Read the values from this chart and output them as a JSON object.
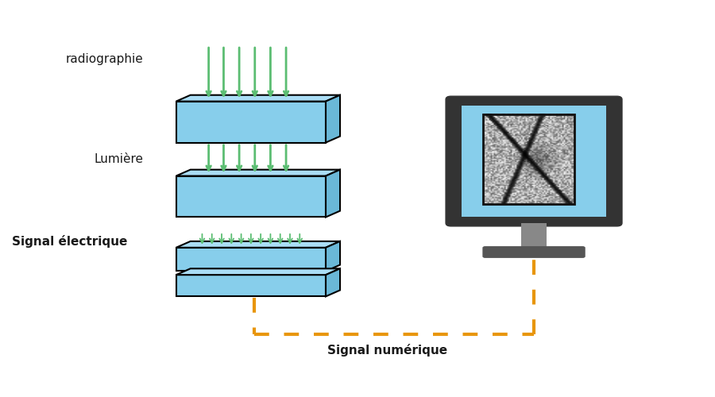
{
  "bg_color": "#ffffff",
  "layer_color": "#87CEEB",
  "layer_edge_color": "#000000",
  "arrow_color": "#5BBD72",
  "dashed_line_color": "#E8960C",
  "text_color": "#1a1a1a",
  "monitor_body_color": "#333333",
  "monitor_screen_color": "#87CEEB",
  "monitor_stand_color": "#888888",
  "monitor_base_color": "#555555",
  "label_radiographie": "radiographie",
  "label_lumiere": "Lumière",
  "label_signal_elec": "Signal électrique",
  "label_signal_num": "Signal numérique"
}
